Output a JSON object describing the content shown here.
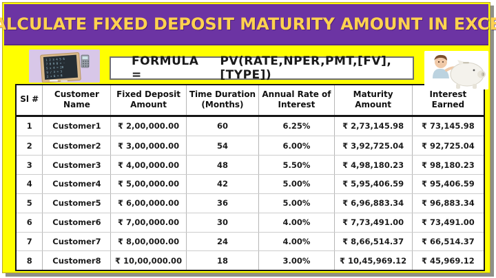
{
  "title": "CALCULATE FIXED DEPOSIT MATURITY AMOUNT IN EXCEL",
  "formula": {
    "label": "FORMULA =",
    "expression": "PV(RATE,NPER,PMT,[FV],[TYPE])"
  },
  "images": {
    "left": "chalkboard-slate-with-calculator-photo",
    "right": "child-with-piggy-bank-photo"
  },
  "colors": {
    "banner_purple": "#6C34A3",
    "title_gold": "#FFD24F",
    "frame_yellow": "#FFFF00",
    "shadow_gray": "#8F8F88"
  },
  "table": {
    "headers": [
      "Sl #",
      "Customer Name",
      "Fixed Deposit Amount",
      "Time Duration (Months)",
      "Annual Rate of Interest",
      "Maturity Amount",
      "Interest Earned"
    ],
    "rows": [
      [
        "1",
        "Customer1",
        "₹ 2,00,000.00",
        "60",
        "6.25%",
        "₹ 2,73,145.98",
        "₹ 73,145.98"
      ],
      [
        "2",
        "Customer2",
        "₹ 3,00,000.00",
        "54",
        "6.00%",
        "₹ 3,92,725.04",
        "₹ 92,725.04"
      ],
      [
        "3",
        "Customer3",
        "₹ 4,00,000.00",
        "48",
        "5.50%",
        "₹ 4,98,180.23",
        "₹ 98,180.23"
      ],
      [
        "4",
        "Customer4",
        "₹ 5,00,000.00",
        "42",
        "5.00%",
        "₹ 5,95,406.59",
        "₹ 95,406.59"
      ],
      [
        "5",
        "Customer5",
        "₹ 6,00,000.00",
        "36",
        "5.00%",
        "₹ 6,96,883.34",
        "₹ 96,883.34"
      ],
      [
        "6",
        "Customer6",
        "₹ 7,00,000.00",
        "30",
        "4.00%",
        "₹ 7,73,491.00",
        "₹ 73,491.00"
      ],
      [
        "7",
        "Customer7",
        "₹ 8,00,000.00",
        "24",
        "4.00%",
        "₹ 8,66,514.37",
        "₹ 66,514.37"
      ],
      [
        "8",
        "Customer8",
        "₹ 10,00,000.00",
        "18",
        "3.00%",
        "₹ 10,45,969.12",
        "₹ 45,969.12"
      ]
    ]
  }
}
